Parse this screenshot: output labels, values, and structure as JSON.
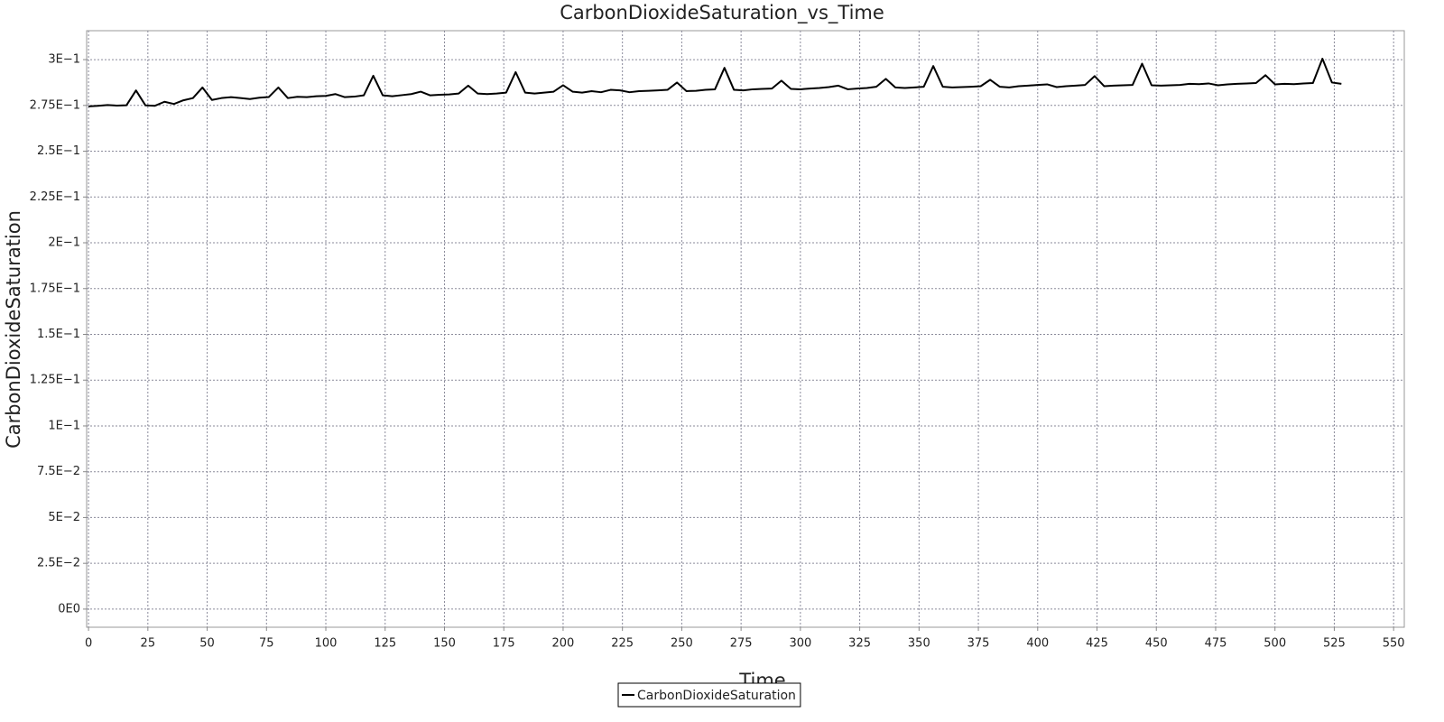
{
  "chart_data": {
    "type": "line",
    "title": "CarbonDioxideSaturation_vs_Time",
    "x_label": "Time",
    "y_label": "CarbonDioxideSaturation",
    "x": [
      0,
      4,
      8,
      12,
      16,
      20,
      24,
      28,
      32,
      36,
      40,
      44,
      48,
      52,
      56,
      60,
      64,
      68,
      72,
      76,
      80,
      84,
      88,
      92,
      96,
      100,
      104,
      108,
      112,
      116,
      120,
      124,
      128,
      132,
      136,
      140,
      144,
      148,
      152,
      156,
      160,
      164,
      168,
      172,
      176,
      180,
      184,
      188,
      192,
      196,
      200,
      204,
      208,
      212,
      216,
      220,
      224,
      228,
      232,
      236,
      240,
      244,
      248,
      252,
      256,
      260,
      264,
      268,
      272,
      276,
      280,
      284,
      288,
      292,
      296,
      300,
      304,
      308,
      312,
      316,
      320,
      324,
      328,
      332,
      336,
      340,
      344,
      348,
      352,
      356,
      360,
      364,
      368,
      372,
      376,
      380,
      384,
      388,
      392,
      396,
      400,
      404,
      408,
      412,
      416,
      420,
      424,
      428,
      432,
      436,
      440,
      444,
      448,
      452,
      456,
      460,
      464,
      468,
      472,
      476,
      480,
      484,
      488,
      492,
      496,
      500,
      504,
      508,
      512,
      516,
      520,
      524,
      528
    ],
    "series": [
      {
        "name": "CarbonDioxideSaturation",
        "color": "#000000",
        "values": [
          0.2745,
          0.2748,
          0.2752,
          0.2749,
          0.2751,
          0.2832,
          0.275,
          0.2748,
          0.277,
          0.2758,
          0.2778,
          0.279,
          0.2848,
          0.278,
          0.279,
          0.2795,
          0.279,
          0.2785,
          0.2792,
          0.2796,
          0.2848,
          0.279,
          0.2797,
          0.2795,
          0.28,
          0.2802,
          0.2812,
          0.2795,
          0.2798,
          0.2805,
          0.2912,
          0.2805,
          0.28,
          0.2806,
          0.2812,
          0.2825,
          0.2805,
          0.2808,
          0.281,
          0.2815,
          0.2858,
          0.2815,
          0.2812,
          0.2815,
          0.282,
          0.2932,
          0.282,
          0.2815,
          0.282,
          0.2825,
          0.286,
          0.2825,
          0.282,
          0.2828,
          0.2822,
          0.2835,
          0.2832,
          0.2822,
          0.2828,
          0.283,
          0.2832,
          0.2835,
          0.2875,
          0.2828,
          0.283,
          0.2835,
          0.2838,
          0.2955,
          0.2835,
          0.2832,
          0.2838,
          0.284,
          0.2842,
          0.2885,
          0.284,
          0.2838,
          0.2842,
          0.2845,
          0.285,
          0.2858,
          0.2838,
          0.2842,
          0.2845,
          0.2852,
          0.2895,
          0.2848,
          0.2845,
          0.2848,
          0.2852,
          0.2965,
          0.2852,
          0.2848,
          0.285,
          0.2852,
          0.2855,
          0.289,
          0.2852,
          0.2848,
          0.2855,
          0.2858,
          0.2862,
          0.2865,
          0.285,
          0.2855,
          0.2858,
          0.2862,
          0.291,
          0.2855,
          0.2858,
          0.286,
          0.2862,
          0.2978,
          0.286,
          0.2858,
          0.286,
          0.2862,
          0.2868,
          0.2866,
          0.287,
          0.286,
          0.2865,
          0.2868,
          0.287,
          0.2872,
          0.2915,
          0.2865,
          0.2868,
          0.2866,
          0.287,
          0.2872,
          0.3005,
          0.2875,
          0.2868
        ]
      }
    ],
    "xlim": [
      -0.8,
      554.5
    ],
    "xticks": [
      0,
      25,
      50,
      75,
      100,
      125,
      150,
      175,
      200,
      225,
      250,
      275,
      300,
      325,
      350,
      375,
      400,
      425,
      450,
      475,
      500,
      525,
      550
    ],
    "ylim": [
      -0.0099,
      0.3158
    ],
    "yticks": [
      {
        "value": 0,
        "label": "0E0"
      },
      {
        "value": 0.025,
        "label": "2.5E−2"
      },
      {
        "value": 0.05,
        "label": "5E−2"
      },
      {
        "value": 0.075,
        "label": "7.5E−2"
      },
      {
        "value": 0.1,
        "label": "1E−1"
      },
      {
        "value": 0.125,
        "label": "1.25E−1"
      },
      {
        "value": 0.15,
        "label": "1.5E−1"
      },
      {
        "value": 0.175,
        "label": "1.75E−1"
      },
      {
        "value": 0.2,
        "label": "2E−1"
      },
      {
        "value": 0.225,
        "label": "2.25E−1"
      },
      {
        "value": 0.25,
        "label": "2.5E−1"
      },
      {
        "value": 0.275,
        "label": "2.75E−1"
      },
      {
        "value": 0.3,
        "label": "3E−1"
      }
    ],
    "grid": true,
    "legend": "bottom"
  }
}
